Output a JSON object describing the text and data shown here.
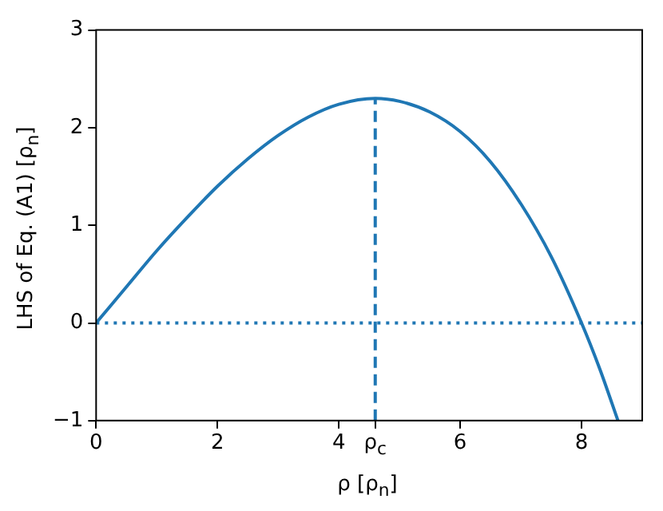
{
  "chart_data": {
    "type": "line",
    "xlabel": "ρ [ρ$_{n}$]",
    "ylabel": "LHS of Eq. (A1) [ρ$_{n}$]",
    "series": [
      {
        "color": "#1f77b4",
        "x": [
          0,
          0.5,
          1,
          1.5,
          2,
          2.5,
          3,
          3.5,
          4,
          4.6,
          5,
          5.5,
          6,
          6.5,
          7,
          7.5,
          8,
          8.3,
          8.6
        ],
        "values": [
          0,
          0.37,
          0.74,
          1.08,
          1.4,
          1.68,
          1.92,
          2.11,
          2.24,
          2.3,
          2.27,
          2.16,
          1.96,
          1.65,
          1.22,
          0.68,
          0,
          -0.47,
          -1.0
        ]
      }
    ],
    "xlim": [
      0,
      9
    ],
    "ylim": [
      -1,
      3
    ],
    "xticks": [
      0,
      2,
      4,
      {
        "value": 4.6,
        "label": "ρ$_{c}$"
      },
      6,
      8
    ],
    "yticks": [
      {
        "value": -1,
        "label": "−1"
      },
      0,
      1,
      2,
      3
    ],
    "ref_lines": [
      {
        "axis": "y",
        "value": 0,
        "color": "#1f77b4",
        "line_style": "dotted"
      },
      {
        "axis": "x",
        "value": 4.6,
        "color": "#1f77b4",
        "line_style": "dashed"
      }
    ],
    "grid": false,
    "legend": false,
    "marker": "none",
    "line_style": "solid"
  }
}
